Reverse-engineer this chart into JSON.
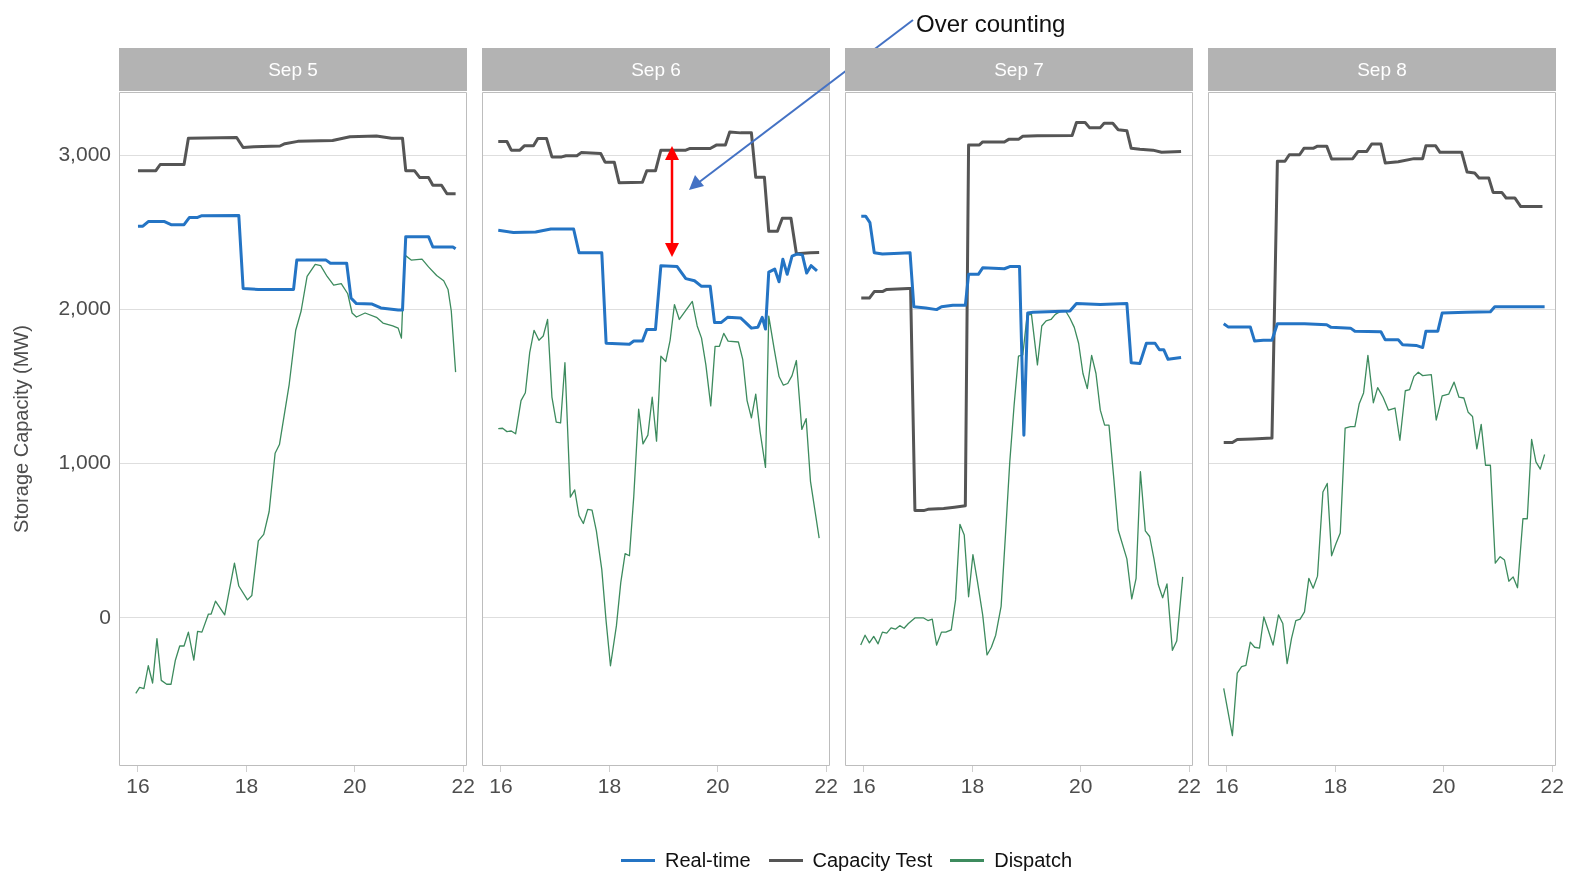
{
  "chart_data": [
    {
      "type": "line",
      "title": "Sep 5",
      "ylabel": "Storage Capacity (MW)",
      "xlim": [
        15.65,
        22.07
      ],
      "xticks": [
        16,
        18,
        20,
        22
      ],
      "ylim": [
        -960,
        3410
      ],
      "yticks": [
        0,
        {
          "value": 1000,
          "label": "1,000"
        },
        {
          "value": 2000,
          "label": "2,000"
        },
        {
          "value": 3000,
          "label": "3,000"
        }
      ],
      "grid": "y",
      "legend": "bottom",
      "series": [
        {
          "name": "Real-time",
          "color": "#2474c4",
          "x": [
            16.0,
            16.09,
            16.19,
            16.49,
            16.61,
            16.85,
            16.95,
            17.1,
            17.18,
            17.86,
            17.94,
            18.22,
            18.87,
            18.93,
            19.47,
            19.55,
            19.85,
            19.93,
            20.03,
            20.32,
            20.48,
            20.8,
            20.88,
            20.94,
            21.36,
            21.44,
            21.81,
            21.86
          ],
          "values": [
            2540,
            2540,
            2570,
            2570,
            2550,
            2550,
            2597,
            2597,
            2608,
            2610,
            2136,
            2130,
            2130,
            2320,
            2320,
            2300,
            2300,
            2074,
            2038,
            2035,
            2010,
            1996,
            1996,
            2472,
            2472,
            2405,
            2405,
            2393
          ]
        },
        {
          "name": "Capacity Test",
          "color": "#555555",
          "x": [
            16.0,
            16.33,
            16.41,
            16.85,
            16.93,
            17.82,
            17.94,
            18.14,
            18.62,
            18.71,
            18.95,
            19.59,
            19.91,
            20.4,
            20.68,
            20.88,
            20.94,
            21.1,
            21.2,
            21.36,
            21.44,
            21.6,
            21.7,
            21.86
          ],
          "values": [
            2900,
            2900,
            2940,
            2940,
            3110,
            3115,
            3050,
            3055,
            3060,
            3075,
            3090,
            3095,
            3120,
            3125,
            3110,
            3110,
            2900,
            2900,
            2855,
            2855,
            2805,
            2805,
            2750,
            2750
          ]
        },
        {
          "name": "Dispatch",
          "color": "#3d8b5e",
          "x": [
            15.96,
            16.03,
            16.11,
            16.19,
            16.27,
            16.35,
            16.43,
            16.53,
            16.61,
            16.69,
            16.77,
            16.85,
            16.93,
            17.03,
            17.1,
            17.18,
            17.3,
            17.35,
            17.43,
            17.6,
            17.78,
            17.86,
            18.02,
            18.1,
            18.22,
            18.32,
            18.42,
            18.53,
            18.61,
            18.79,
            18.91,
            19.01,
            19.12,
            19.27,
            19.37,
            19.49,
            19.61,
            19.75,
            19.87,
            19.95,
            20.03,
            20.19,
            20.4,
            20.52,
            20.7,
            20.8,
            20.86,
            20.92,
            21.04,
            21.24,
            21.36,
            21.51,
            21.64,
            21.72,
            21.78,
            21.86
          ],
          "values": [
            -489,
            -450,
            -458,
            -310,
            -422,
            -134,
            -405,
            -430,
            -430,
            -274,
            -182,
            -182,
            -92,
            -274,
            -87,
            -92,
            25,
            25,
            109,
            20,
            355,
            207,
            117,
            145,
            500,
            542,
            690,
            1068,
            1124,
            1515,
            1865,
            1990,
            2214,
            2292,
            2284,
            2214,
            2158,
            2167,
            2102,
            1977,
            1951,
            1977,
            1949,
            1912,
            1893,
            1879,
            1814,
            2354,
            2320,
            2326,
            2276,
            2220,
            2186,
            2130,
            1990,
            1594
          ]
        }
      ]
    },
    {
      "type": "line",
      "title": "Sep 6",
      "xlim": [
        15.65,
        22.07
      ],
      "xticks": [
        16,
        18,
        20,
        22
      ],
      "ylim": [
        -960,
        3410
      ],
      "yticks": [
        0,
        1000,
        2000,
        3000
      ],
      "grid": "y",
      "tick_labels": "x",
      "annotations": [
        "Over counting"
      ],
      "series": [
        {
          "color": "#2474c4",
          "x": [
            15.95,
            16.23,
            16.64,
            16.92,
            17.34,
            17.44,
            17.86,
            17.94,
            18.37,
            18.45,
            18.61,
            18.69,
            18.85,
            18.95,
            19.25,
            19.41,
            19.57,
            19.7,
            19.86,
            19.94,
            20.06,
            20.18,
            20.42,
            20.5,
            20.62,
            20.74,
            20.82,
            20.88,
            20.94,
            21.05,
            21.13,
            21.2,
            21.28,
            21.37,
            21.47,
            21.56,
            21.64,
            21.72,
            21.83
          ],
          "values": [
            2513,
            2499,
            2502,
            2522,
            2522,
            2368,
            2368,
            1781,
            1775,
            1795,
            1795,
            1870,
            1870,
            2284,
            2278,
            2200,
            2186,
            2150,
            2150,
            1915,
            1915,
            1949,
            1945,
            1920,
            1879,
            1885,
            1949,
            1873,
            2242,
            2262,
            2180,
            2326,
            2228,
            2346,
            2360,
            2354,
            2236,
            2284,
            2250
          ]
        },
        {
          "color": "#555555",
          "x": [
            15.95,
            16.11,
            16.19,
            16.35,
            16.43,
            16.6,
            16.68,
            16.84,
            16.94,
            17.12,
            17.2,
            17.4,
            17.48,
            17.84,
            17.92,
            18.09,
            18.18,
            18.41,
            18.61,
            18.69,
            18.85,
            18.95,
            19.41,
            19.49,
            19.86,
            19.98,
            20.14,
            20.22,
            20.42,
            20.62,
            20.7,
            20.86,
            20.94,
            21.1,
            21.19,
            21.35,
            21.45,
            21.71,
            21.87
          ],
          "values": [
            3089,
            3089,
            3033,
            3033,
            3061,
            3061,
            3109,
            3109,
            2989,
            2989,
            2997,
            2997,
            3017,
            3011,
            2955,
            2955,
            2821,
            2823,
            2825,
            2899,
            2899,
            3033,
            3033,
            3044,
            3044,
            3067,
            3067,
            3151,
            3145,
            3145,
            2857,
            2857,
            2507,
            2507,
            2591,
            2591,
            2362,
            2368,
            2370
          ]
        },
        {
          "color": "#3d8b5e",
          "x": [
            15.95,
            16.03,
            16.11,
            16.19,
            16.27,
            16.37,
            16.45,
            16.53,
            16.61,
            16.7,
            16.78,
            16.86,
            16.94,
            17.02,
            17.1,
            17.18,
            17.28,
            17.36,
            17.44,
            17.52,
            17.6,
            17.68,
            17.76,
            17.86,
            17.94,
            18.02,
            18.13,
            18.21,
            18.29,
            18.37,
            18.45,
            18.54,
            18.62,
            18.71,
            18.79,
            18.87,
            18.95,
            19.04,
            19.12,
            19.2,
            19.29,
            19.39,
            19.53,
            19.62,
            19.7,
            19.78,
            19.87,
            19.95,
            20.03,
            20.11,
            20.19,
            20.38,
            20.46,
            20.54,
            20.62,
            20.7,
            20.78,
            20.88,
            20.94,
            21.04,
            21.13,
            21.21,
            21.29,
            21.37,
            21.45,
            21.55,
            21.63,
            21.71,
            21.87
          ],
          "values": [
            1227,
            1230,
            1208,
            1212,
            1194,
            1409,
            1460,
            1720,
            1865,
            1800,
            1828,
            1935,
            1432,
            1269,
            1264,
            1655,
            783,
            830,
            663,
            612,
            704,
            699,
            565,
            313,
            -22,
            -310,
            -50,
            229,
            417,
            403,
            788,
            1353,
            1129,
            1185,
            1431,
            1146,
            1697,
            1663,
            1800,
            2032,
            1935,
            1985,
            2052,
            1893,
            1814,
            1641,
            1375,
            1761,
            1761,
            1845,
            1795,
            1789,
            1677,
            1409,
            1297,
            1451,
            1208,
            976,
            1957,
            1744,
            1565,
            1509,
            1520,
            1571,
            1669,
            1222,
            1292,
            886,
            517
          ]
        }
      ]
    },
    {
      "type": "line",
      "title": "Sep 7",
      "xlim": [
        15.65,
        22.07
      ],
      "xticks": [
        16,
        18,
        20,
        22
      ],
      "ylim": [
        -960,
        3410
      ],
      "yticks": [
        0,
        1000,
        2000,
        3000
      ],
      "grid": "y",
      "tick_labels": "x",
      "series": [
        {
          "color": "#2474c4",
          "x": [
            15.95,
            16.03,
            16.11,
            16.19,
            16.34,
            16.66,
            16.85,
            16.92,
            17.14,
            17.34,
            17.43,
            17.64,
            17.87,
            17.93,
            18.11,
            18.19,
            18.59,
            18.69,
            18.87,
            18.95,
            19.02,
            19.12,
            19.8,
            19.92,
            20.36,
            20.85,
            20.93,
            21.09,
            21.21,
            21.37,
            21.45,
            21.53,
            21.61,
            21.85
          ],
          "values": [
            2605,
            2605,
            2563,
            2368,
            2359,
            2365,
            2368,
            2018,
            2010,
            1999,
            2018,
            2027,
            2027,
            2228,
            2228,
            2270,
            2264,
            2278,
            2278,
            1185,
            1977,
            1982,
            1990,
            2038,
            2032,
            2038,
            1655,
            1650,
            1781,
            1781,
            1739,
            1739,
            1677,
            1689
          ]
        },
        {
          "color": "#555555",
          "x": [
            15.95,
            16.1,
            16.19,
            16.34,
            16.42,
            16.82,
            16.86,
            16.94,
            17.1,
            17.18,
            17.47,
            17.67,
            17.87,
            17.93,
            18.13,
            18.19,
            18.59,
            18.67,
            18.85,
            18.93,
            19.2,
            19.84,
            19.92,
            20.08,
            20.16,
            20.36,
            20.43,
            20.59,
            20.69,
            20.85,
            20.93,
            21.09,
            21.33,
            21.49,
            21.85
          ],
          "values": [
            2074,
            2074,
            2116,
            2116,
            2130,
            2136,
            2136,
            696,
            696,
            704,
            710,
            718,
            727,
            3067,
            3067,
            3086,
            3086,
            3103,
            3103,
            3123,
            3126,
            3128,
            3212,
            3212,
            3179,
            3179,
            3207,
            3207,
            3165,
            3159,
            3045,
            3039,
            3033,
            3019,
            3025
          ]
        },
        {
          "color": "#3d8b5e",
          "x": [
            15.94,
            16.02,
            16.1,
            16.18,
            16.26,
            16.34,
            16.42,
            16.5,
            16.58,
            16.66,
            16.74,
            16.82,
            16.94,
            17.1,
            17.18,
            17.26,
            17.34,
            17.43,
            17.51,
            17.61,
            17.69,
            17.77,
            17.85,
            17.93,
            18.01,
            18.09,
            18.19,
            18.27,
            18.35,
            18.43,
            18.53,
            18.61,
            18.69,
            18.77,
            18.85,
            18.93,
            19.01,
            19.09,
            19.2,
            19.28,
            19.36,
            19.45,
            19.53,
            19.64,
            19.72,
            19.8,
            19.88,
            19.96,
            20.04,
            20.12,
            20.2,
            20.28,
            20.36,
            20.44,
            20.52,
            20.61,
            20.69,
            20.85,
            20.94,
            21.02,
            21.1,
            21.19,
            21.27,
            21.35,
            21.43,
            21.51,
            21.59,
            21.69,
            21.77,
            21.88
          ],
          "values": [
            -176,
            -112,
            -162,
            -120,
            -168,
            -92,
            -98,
            -64,
            -73,
            -50,
            -67,
            -36,
            0,
            0,
            -17,
            -8,
            -176,
            -92,
            -92,
            -78,
            117,
            607,
            537,
            137,
            411,
            243,
            20,
            -240,
            -190,
            -112,
            75,
            537,
            1012,
            1381,
            1697,
            1705,
            1963,
            1968,
            1641,
            1893,
            1926,
            1935,
            1968,
            1990,
            1990,
            1943,
            1884,
            1781,
            1585,
            1487,
            1702,
            1585,
            1347,
            1250,
            1250,
            900,
            570,
            383,
            123,
            257,
            948,
            565,
            528,
            383,
            215,
            131,
            221,
            -210,
            -150,
            266
          ]
        }
      ]
    },
    {
      "type": "line",
      "title": "Sep 8",
      "xlim": [
        15.65,
        22.07
      ],
      "xticks": [
        16,
        18,
        20,
        22
      ],
      "ylim": [
        -960,
        3410
      ],
      "yticks": [
        0,
        1000,
        2000,
        3000
      ],
      "grid": "y",
      "tick_labels": "x",
      "series": [
        {
          "color": "#2474c4",
          "x": [
            15.94,
            16.02,
            16.43,
            16.51,
            16.67,
            16.83,
            16.93,
            17.43,
            17.84,
            17.92,
            18.28,
            18.36,
            18.84,
            18.92,
            19.16,
            19.24,
            19.49,
            19.61,
            19.67,
            19.89,
            19.97,
            20.41,
            20.86,
            20.94,
            21.86
          ],
          "values": [
            1907,
            1887,
            1887,
            1795,
            1800,
            1800,
            1907,
            1907,
            1901,
            1884,
            1879,
            1859,
            1856,
            1803,
            1803,
            1772,
            1767,
            1753,
            1859,
            1859,
            1977,
            1982,
            1985,
            2018,
            2018
          ]
        },
        {
          "color": "#555555",
          "x": [
            15.94,
            16.1,
            16.19,
            16.47,
            16.83,
            16.93,
            17.07,
            17.15,
            17.34,
            17.42,
            17.59,
            17.67,
            17.84,
            17.93,
            18.32,
            18.42,
            18.58,
            18.67,
            18.84,
            18.92,
            19.16,
            19.45,
            19.61,
            19.67,
            19.85,
            19.93,
            20.33,
            20.43,
            20.57,
            20.65,
            20.83,
            20.91,
            21.07,
            21.15,
            21.31,
            21.42,
            21.82
          ],
          "values": [
            1138,
            1138,
            1157,
            1160,
            1166,
            2961,
            2961,
            3003,
            3003,
            3045,
            3045,
            3059,
            3059,
            2975,
            2978,
            3025,
            3025,
            3073,
            3073,
            2950,
            2958,
            2978,
            2978,
            3061,
            3061,
            3019,
            3019,
            2891,
            2885,
            2852,
            2852,
            2759,
            2759,
            2723,
            2723,
            2667,
            2667
          ]
        },
        {
          "color": "#3d8b5e",
          "x": [
            15.94,
            16.1,
            16.19,
            16.27,
            16.35,
            16.43,
            16.51,
            16.6,
            16.68,
            16.76,
            16.85,
            16.95,
            17.03,
            17.11,
            17.19,
            17.27,
            17.35,
            17.43,
            17.51,
            17.59,
            17.67,
            17.77,
            17.85,
            17.93,
            18.01,
            18.09,
            18.18,
            18.28,
            18.36,
            18.44,
            18.52,
            18.6,
            18.7,
            18.78,
            18.88,
            18.98,
            19.1,
            19.19,
            19.29,
            19.37,
            19.45,
            19.53,
            19.61,
            19.77,
            19.86,
            19.97,
            20.09,
            20.19,
            20.28,
            20.37,
            20.45,
            20.53,
            20.61,
            20.69,
            20.77,
            20.86,
            20.95,
            21.04,
            21.12,
            21.2,
            21.28,
            21.36,
            21.46,
            21.54,
            21.62,
            21.7,
            21.78,
            21.86
          ],
          "values": [
            -456,
            -763,
            -358,
            -316,
            -308,
            -157,
            -190,
            -196,
            6,
            -78,
            -176,
            20,
            -36,
            -296,
            -134,
            -17,
            -8,
            39,
            257,
            193,
            271,
            816,
            872,
            403,
            481,
            551,
            1230,
            1241,
            1241,
            1389,
            1459,
            1702,
            1395,
            1493,
            1431,
            1347,
            1361,
            1152,
            1473,
            1481,
            1566,
            1593,
            1571,
            1577,
            1283,
            1440,
            1451,
            1529,
            1431,
            1426,
            1333,
            1306,
            1096,
            1255,
            990,
            990,
            355,
            397,
            375,
            238,
            266,
            196,
            643,
            643,
            1157,
            1012,
            965,
            1060
          ]
        }
      ]
    }
  ]
}
